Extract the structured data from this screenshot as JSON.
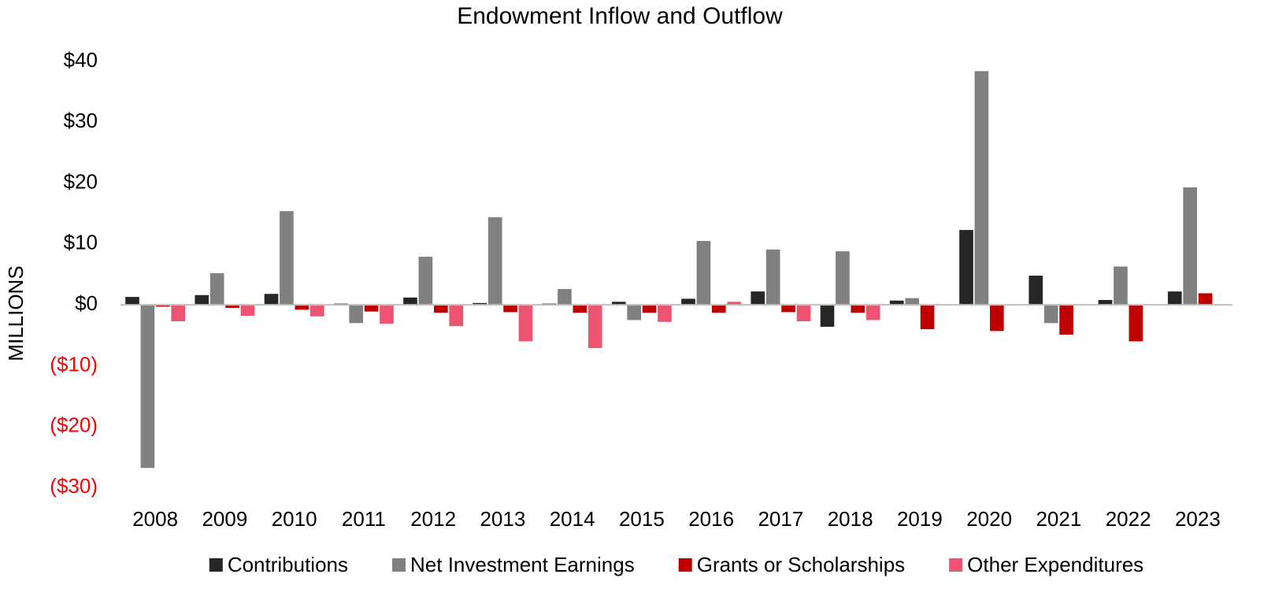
{
  "chart_data": {
    "type": "bar",
    "title": "Endowment Inflow and Outflow",
    "y_label": "MILLIONS",
    "categories": [
      "2008",
      "2009",
      "2010",
      "2011",
      "2012",
      "2013",
      "2014",
      "2015",
      "2016",
      "2017",
      "2018",
      "2019",
      "2020",
      "2021",
      "2022",
      "2023"
    ],
    "series": [
      {
        "name": "Contributions",
        "color": "#262626",
        "values": [
          1.3,
          1.6,
          1.8,
          0.2,
          1.2,
          0.3,
          0.2,
          0.5,
          1.0,
          2.2,
          -3.6,
          0.7,
          12.3,
          4.8,
          0.8,
          2.2
        ]
      },
      {
        "name": "Net Investment Earnings",
        "color": "#808080",
        "values": [
          -26.8,
          5.2,
          15.4,
          -3.0,
          7.9,
          14.4,
          2.6,
          -2.5,
          10.5,
          9.1,
          8.8,
          1.1,
          38.4,
          -3.0,
          6.3,
          19.3
        ]
      },
      {
        "name": "Grants or Scholarships",
        "color": "#c00000",
        "values": [
          -0.3,
          -0.5,
          -0.8,
          -1.1,
          -1.3,
          -1.2,
          -1.3,
          -1.3,
          -1.3,
          -1.2,
          -1.3,
          -4.0,
          -4.3,
          -4.9,
          -6.0,
          1.9
        ]
      },
      {
        "name": "Other Expenditures",
        "color": "#ee5471",
        "values": [
          -2.7,
          -1.8,
          -1.9,
          -3.1,
          -3.5,
          -6.0,
          -7.1,
          -2.8,
          0.5,
          -2.7,
          -2.5,
          0,
          0,
          0,
          0,
          0
        ]
      }
    ],
    "ylim": [
      -30,
      40
    ],
    "yticks": [
      {
        "value": 40,
        "label": "$40"
      },
      {
        "value": 30,
        "label": "$30"
      },
      {
        "value": 20,
        "label": "$20"
      },
      {
        "value": 10,
        "label": "$10"
      },
      {
        "value": 0,
        "label": "$0"
      },
      {
        "value": -10,
        "label": "($10)"
      },
      {
        "value": -20,
        "label": "($20)"
      },
      {
        "value": -30,
        "label": "($30)"
      }
    ],
    "negative_tick_color": "#ff0000",
    "zero_line_color": "#bfbfbf",
    "legend": "bottom"
  }
}
